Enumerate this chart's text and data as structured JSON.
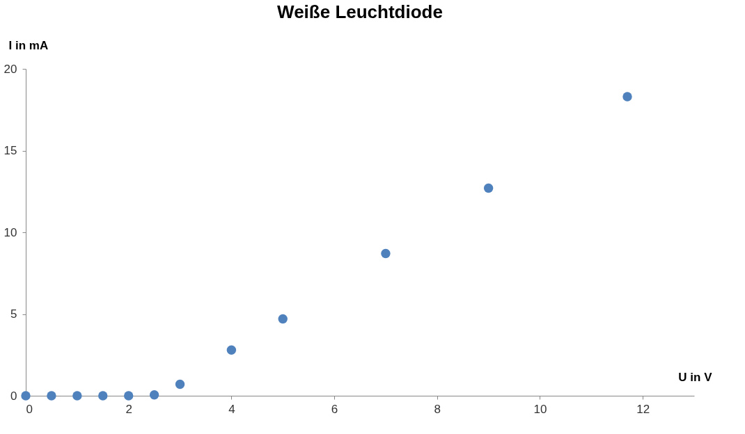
{
  "chart_data": {
    "type": "scatter",
    "title": "Weiße Leuchtdiode",
    "xlabel": "U in V",
    "ylabel": "I in mA",
    "x": [
      0,
      0.5,
      1,
      1.5,
      2,
      2.5,
      3,
      4,
      5,
      7,
      9,
      11.7
    ],
    "series": [
      {
        "color": "#4f81bd",
        "values": [
          0,
          0,
          0,
          0,
          0,
          0.05,
          0.7,
          2.8,
          4.7,
          8.7,
          12.7,
          18.3
        ]
      }
    ],
    "xlim": [
      0,
      13
    ],
    "xticks": [
      0,
      2,
      4,
      6,
      8,
      10,
      12
    ],
    "ylim": [
      0,
      20
    ],
    "yticks": [
      0,
      5,
      10,
      15,
      20
    ],
    "grid": false,
    "legend": false,
    "marker": "circle"
  }
}
